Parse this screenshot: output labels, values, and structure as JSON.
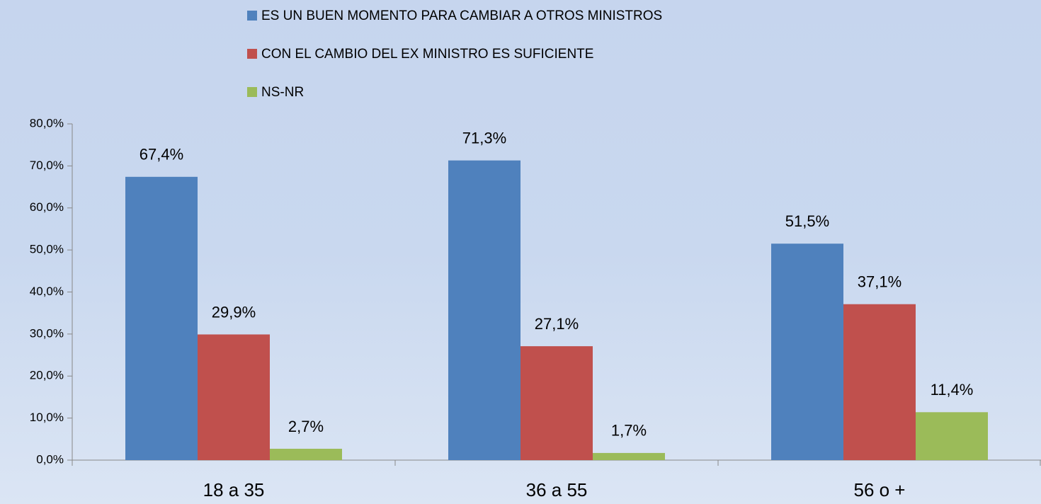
{
  "chart_data": {
    "type": "bar",
    "categories": [
      "18 a 35",
      "36 a 55",
      "56 o +"
    ],
    "series": [
      {
        "name": "ES UN BUEN MOMENTO PARA CAMBIAR A OTROS MINISTROS",
        "color": "#4f81bd",
        "values": [
          67.4,
          71.3,
          51.5
        ],
        "value_labels": [
          "67,4%",
          "71,3%",
          "51,5%"
        ]
      },
      {
        "name": "CON EL CAMBIO DEL EX MINISTRO ES SUFICIENTE",
        "color": "#c0504d",
        "values": [
          29.9,
          27.1,
          37.1
        ],
        "value_labels": [
          "29,9%",
          "27,1%",
          "37,1%"
        ]
      },
      {
        "name": "NS-NR",
        "color": "#9bbb59",
        "values": [
          2.7,
          1.7,
          11.4
        ],
        "value_labels": [
          "2,7%",
          "1,7%",
          "11,4%"
        ]
      }
    ],
    "ylim": [
      0,
      80
    ],
    "yticks": [
      {
        "value": 0,
        "label": "0,0%"
      },
      {
        "value": 10,
        "label": "10,0%"
      },
      {
        "value": 20,
        "label": "20,0%"
      },
      {
        "value": 30,
        "label": "30,0%"
      },
      {
        "value": 40,
        "label": "40,0%"
      },
      {
        "value": 50,
        "label": "50,0%"
      },
      {
        "value": 60,
        "label": "60,0%"
      },
      {
        "value": 70,
        "label": "70,0%"
      },
      {
        "value": 80,
        "label": "80,0%"
      }
    ],
    "legend": "top",
    "grid": false
  }
}
